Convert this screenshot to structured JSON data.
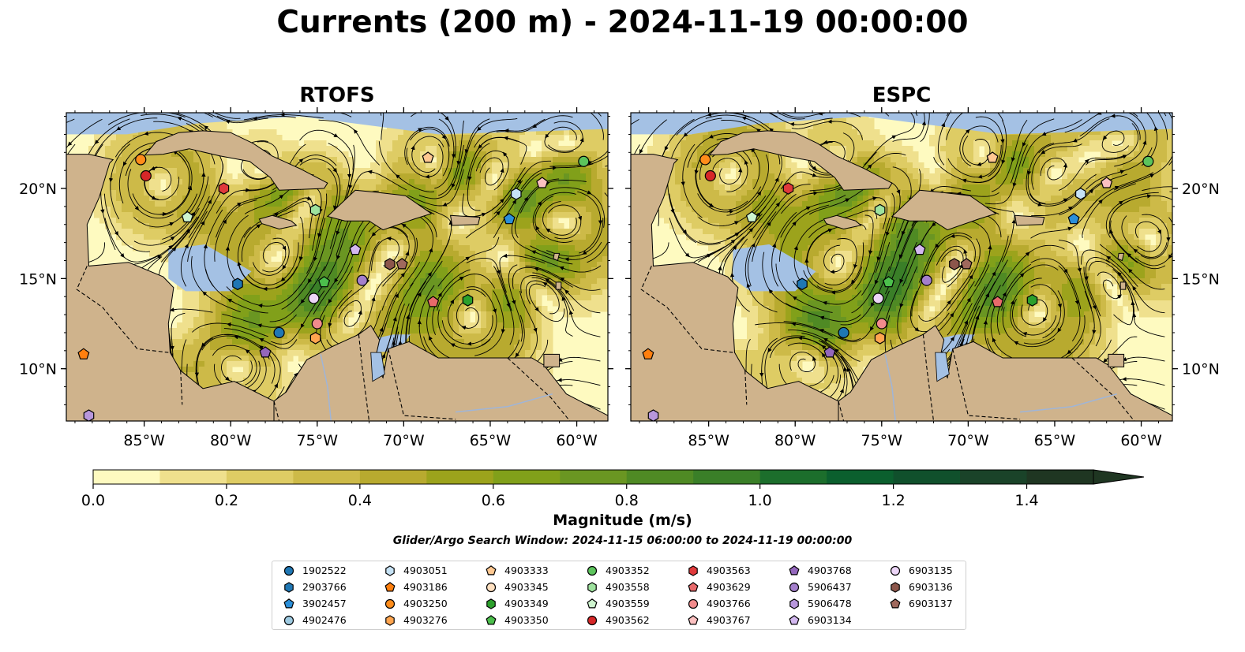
{
  "suptitle": "Currents (200 m) - 2024-11-19 00:00:00",
  "panels": [
    {
      "title": "RTOFS",
      "seed": 7
    },
    {
      "title": "ESPC",
      "seed": 11
    }
  ],
  "map": {
    "lon_range": [
      -89.5,
      -58.2
    ],
    "lat_range": [
      7.1,
      24.2
    ],
    "lon_ticks": [
      -85,
      -80,
      -75,
      -70,
      -65,
      -60
    ],
    "lon_tick_labels": [
      "85°W",
      "80°W",
      "75°W",
      "70°W",
      "65°W",
      "60°W"
    ],
    "lat_ticks": [
      10,
      15,
      20
    ],
    "lat_tick_labels": [
      "10°N",
      "15°N",
      "20°N"
    ],
    "colors": {
      "ocean": "#a4c1e4",
      "land": "#cfb38c",
      "field_low": "#fefac0",
      "field_high": "#1d2d16"
    }
  },
  "colorbar": {
    "label": "Magnitude (m/s)",
    "vmin": 0.0,
    "vmax": 1.5,
    "step": 0.1,
    "extend": "max",
    "ticks": [
      0.0,
      0.2,
      0.4,
      0.6,
      0.8,
      1.0,
      1.2,
      1.4
    ],
    "tick_labels": [
      "0.0",
      "0.2",
      "0.4",
      "0.6",
      "0.8",
      "1.0",
      "1.2",
      "1.4"
    ],
    "colors": [
      "#fefac0",
      "#efe08d",
      "#decc64",
      "#cdba48",
      "#b8aa2f",
      "#9ca31c",
      "#81a01a",
      "#6a9622",
      "#4f8a24",
      "#3a7f28",
      "#1c6e2c",
      "#0b5f2e",
      "#10502c",
      "#1a4329",
      "#1f3622"
    ]
  },
  "search_window": "Glider/Argo Search Window: 2024-11-15 06:00:00 to 2024-11-19 00:00:00",
  "legend": [
    {
      "id": "1902522",
      "marker": "circle",
      "color": "#1f77b4"
    },
    {
      "id": "2903766",
      "marker": "hexagon",
      "color": "#1f77b4"
    },
    {
      "id": "3902457",
      "marker": "pentagon",
      "color": "#2b8fd9"
    },
    {
      "id": "4902476",
      "marker": "circle",
      "color": "#9ecae1"
    },
    {
      "id": "4903051",
      "marker": "hexagon",
      "color": "#c6e2f5"
    },
    {
      "id": "4903186",
      "marker": "pentagon",
      "color": "#ff7f0e"
    },
    {
      "id": "4903250",
      "marker": "circle",
      "color": "#ff8c1a"
    },
    {
      "id": "4903276",
      "marker": "hexagon",
      "color": "#ffa54f"
    },
    {
      "id": "4903333",
      "marker": "pentagon",
      "color": "#ffc891"
    },
    {
      "id": "4903345",
      "marker": "circle",
      "color": "#ffe0c0"
    },
    {
      "id": "4903349",
      "marker": "hexagon",
      "color": "#2ca02c"
    },
    {
      "id": "4903350",
      "marker": "pentagon",
      "color": "#4cbf4c"
    },
    {
      "id": "4903352",
      "marker": "circle",
      "color": "#5cc45c"
    },
    {
      "id": "4903558",
      "marker": "hexagon",
      "color": "#9ee29e"
    },
    {
      "id": "4903559",
      "marker": "pentagon",
      "color": "#cff5cf"
    },
    {
      "id": "4903562",
      "marker": "circle",
      "color": "#d62728"
    },
    {
      "id": "4903563",
      "marker": "hexagon",
      "color": "#e0393b"
    },
    {
      "id": "4903629",
      "marker": "pentagon",
      "color": "#e86a6b"
    },
    {
      "id": "4903766",
      "marker": "circle",
      "color": "#f28b8c"
    },
    {
      "id": "4903767",
      "marker": "pentagon",
      "color": "#fbc0c0"
    },
    {
      "id": "4903768",
      "marker": "pentagon",
      "color": "#9467bd"
    },
    {
      "id": "5906437",
      "marker": "circle",
      "color": "#a47fcc"
    },
    {
      "id": "5906478",
      "marker": "hexagon",
      "color": "#b897dc"
    },
    {
      "id": "6903134",
      "marker": "pentagon",
      "color": "#d3b8f0"
    },
    {
      "id": "6903135",
      "marker": "circle",
      "color": "#ecd5f7"
    },
    {
      "id": "6903136",
      "marker": "hexagon",
      "color": "#8c564b"
    },
    {
      "id": "6903137",
      "marker": "pentagon",
      "color": "#a0695d"
    }
  ],
  "floats": [
    {
      "id": "4903250",
      "lon": -85.2,
      "lat": 21.6
    },
    {
      "id": "4903562",
      "lon": -84.9,
      "lat": 20.7
    },
    {
      "id": "4903563",
      "lon": -80.4,
      "lat": 20.0
    },
    {
      "id": "4903559",
      "lon": -82.5,
      "lat": 18.4
    },
    {
      "id": "4903558",
      "lon": -75.1,
      "lat": 18.8
    },
    {
      "id": "4903333",
      "lon": -68.6,
      "lat": 21.7
    },
    {
      "id": "4903051",
      "lon": -63.5,
      "lat": 19.7
    },
    {
      "id": "4903767",
      "lon": -62.0,
      "lat": 20.3
    },
    {
      "id": "4903352",
      "lon": -59.6,
      "lat": 21.5
    },
    {
      "id": "3902457",
      "lon": -63.9,
      "lat": 18.3
    },
    {
      "id": "6903134",
      "lon": -72.8,
      "lat": 16.6
    },
    {
      "id": "6903136",
      "lon": -70.8,
      "lat": 15.8
    },
    {
      "id": "6903137",
      "lon": -70.1,
      "lat": 15.8
    },
    {
      "id": "5906437",
      "lon": -72.4,
      "lat": 14.9
    },
    {
      "id": "4903350",
      "lon": -74.6,
      "lat": 14.8
    },
    {
      "id": "2903766",
      "lon": -79.6,
      "lat": 14.7
    },
    {
      "id": "6903135",
      "lon": -75.2,
      "lat": 13.9
    },
    {
      "id": "4903629",
      "lon": -68.3,
      "lat": 13.7
    },
    {
      "id": "4903349",
      "lon": -66.3,
      "lat": 13.8
    },
    {
      "id": "4903766",
      "lon": -75.0,
      "lat": 12.5
    },
    {
      "id": "1902522",
      "lon": -77.2,
      "lat": 12.0
    },
    {
      "id": "4903276",
      "lon": -75.1,
      "lat": 11.7
    },
    {
      "id": "4903768",
      "lon": -78.0,
      "lat": 10.9
    },
    {
      "id": "4903186",
      "lon": -88.5,
      "lat": 10.8
    },
    {
      "id": "5906478",
      "lon": -88.2,
      "lat": 7.4
    }
  ]
}
